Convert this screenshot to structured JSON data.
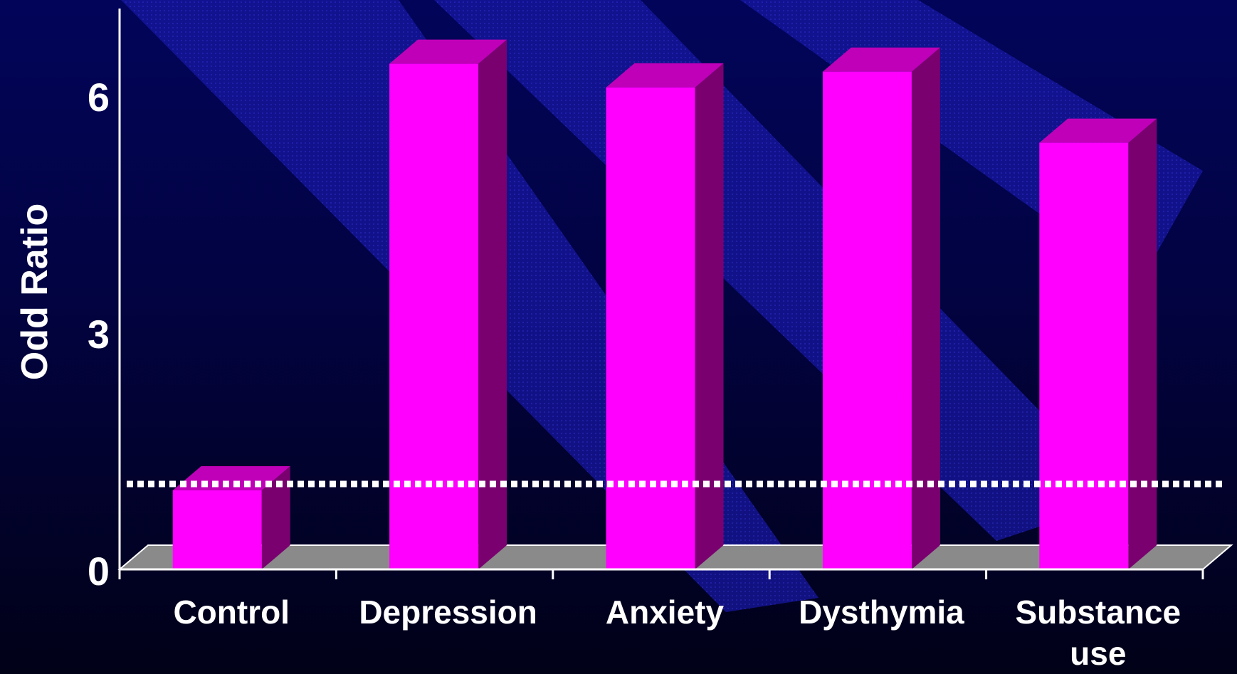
{
  "chart_data": {
    "type": "bar",
    "title": "",
    "xlabel": "",
    "ylabel": "Odd Ratio",
    "categories": [
      "Control",
      "Depression",
      "Anxiety",
      "Dysthymia",
      "Substance use"
    ],
    "category_lines": [
      [
        "Control"
      ],
      [
        "Depression"
      ],
      [
        "Anxiety"
      ],
      [
        "Dysthymia"
      ],
      [
        "Substance",
        "use"
      ]
    ],
    "values": [
      1.0,
      6.4,
      6.1,
      6.3,
      5.4
    ],
    "yticks": [
      0,
      3,
      6
    ],
    "ylim": [
      0,
      7
    ],
    "reference_line": {
      "value": 1.0,
      "style": "dotted"
    },
    "grid": false,
    "legend": "none",
    "colors": {
      "bar_front": "#ff00ff",
      "bar_side": "#7a0070",
      "bar_top": "#c000b8",
      "floor": "#8a8a8a",
      "axis": "#ffffff",
      "reference_line": "#ffffff",
      "background": "#02034a",
      "stripe": "#1a1aa8"
    }
  }
}
